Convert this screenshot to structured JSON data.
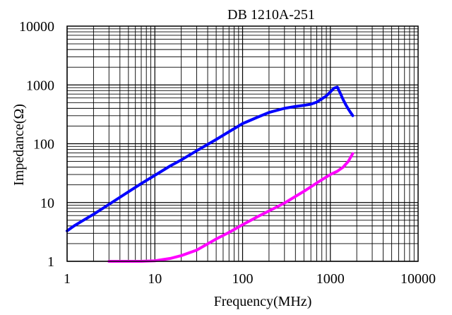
{
  "chart_data": {
    "type": "line",
    "title": "DB 1210A-251",
    "xlabel": "Frequency(MHz)",
    "ylabel": "Impedance(Ω)",
    "x_scale": "log",
    "y_scale": "log",
    "xlim": [
      1,
      10000
    ],
    "ylim": [
      1,
      10000
    ],
    "grid": true,
    "x_ticks": [
      {
        "value": 1,
        "label": "1"
      },
      {
        "value": 10,
        "label": "10"
      },
      {
        "value": 100,
        "label": "100"
      },
      {
        "value": 1000,
        "label": "1000"
      },
      {
        "value": 10000,
        "label": "10000"
      }
    ],
    "y_ticks": [
      {
        "value": 1,
        "label": "1"
      },
      {
        "value": 10,
        "label": "10"
      },
      {
        "value": 100,
        "label": "100"
      },
      {
        "value": 1000,
        "label": "1000"
      },
      {
        "value": 10000,
        "label": "10000"
      }
    ],
    "series": [
      {
        "color": "#0000ff",
        "x": [
          1,
          1.2,
          1.5,
          2,
          3,
          5,
          7,
          10,
          15,
          20,
          30,
          50,
          70,
          100,
          150,
          200,
          300,
          400,
          500,
          600,
          700,
          800,
          900,
          1000,
          1100,
          1200,
          1300,
          1400,
          1500,
          1600,
          1700,
          1800
        ],
        "y": [
          3.3,
          4.0,
          4.9,
          6.3,
          9.3,
          15.2,
          21,
          29,
          42,
          53,
          76,
          118,
          160,
          220,
          285,
          340,
          400,
          430,
          450,
          470,
          510,
          580,
          650,
          760,
          880,
          920,
          720,
          560,
          460,
          390,
          340,
          300
        ]
      },
      {
        "color": "#ff00ff",
        "x": [
          3,
          5,
          7,
          10,
          15,
          20,
          30,
          50,
          70,
          100,
          150,
          200,
          300,
          500,
          700,
          1000,
          1200,
          1400,
          1600,
          1800
        ],
        "y": [
          1,
          1,
          1,
          1.02,
          1.12,
          1.25,
          1.55,
          2.4,
          3.1,
          4.2,
          5.8,
          7.2,
          9.8,
          15.5,
          21.5,
          30,
          34,
          40,
          50,
          68
        ]
      }
    ]
  }
}
